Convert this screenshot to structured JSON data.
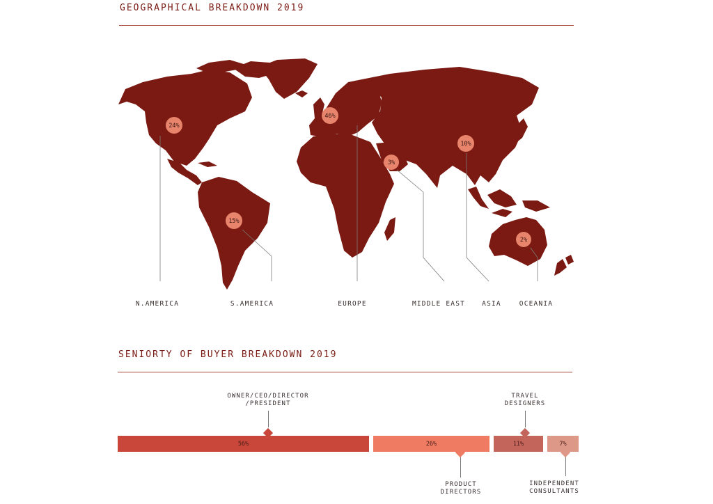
{
  "titles": {
    "geo": "GEOGRAPHICAL BREAKDOWN 2019",
    "seniority": "SENIORTY OF BUYER BREAKDOWN 2019"
  },
  "colors": {
    "accent": "#7a1a12",
    "land": "#7a1a12",
    "marker": "#e8836c",
    "seg1": "#c8473a",
    "seg2": "#ee7b62",
    "seg3": "#c4655c",
    "seg4": "#dd9888"
  },
  "chart_data": [
    {
      "type": "map",
      "title": "GEOGRAPHICAL BREAKDOWN 2019",
      "regions": [
        {
          "name": "N.AMERICA",
          "value": 24,
          "label": "24%"
        },
        {
          "name": "S.AMERICA",
          "value": 15,
          "label": "15%"
        },
        {
          "name": "EUROPE",
          "value": 46,
          "label": "46%"
        },
        {
          "name": "MIDDLE EAST",
          "value": 3,
          "label": "3%"
        },
        {
          "name": "ASIA",
          "value": 10,
          "label": "10%"
        },
        {
          "name": "OCEANIA",
          "value": 2,
          "label": "2%"
        }
      ]
    },
    {
      "type": "bar",
      "orientation": "horizontal-stacked",
      "title": "SENIORTY OF BUYER BREAKDOWN 2019",
      "categories": [
        "OWNER/CEO/DIRECTOR\n/PRESIDENT",
        "PRODUCT\nDIRECTORS",
        "TRAVEL\nDESIGNERS",
        "INDEPENDENT\nCONSULTANTS"
      ],
      "values": [
        56,
        26,
        11,
        7
      ],
      "value_labels": [
        "56%",
        "26%",
        "11%",
        "7%"
      ]
    }
  ]
}
